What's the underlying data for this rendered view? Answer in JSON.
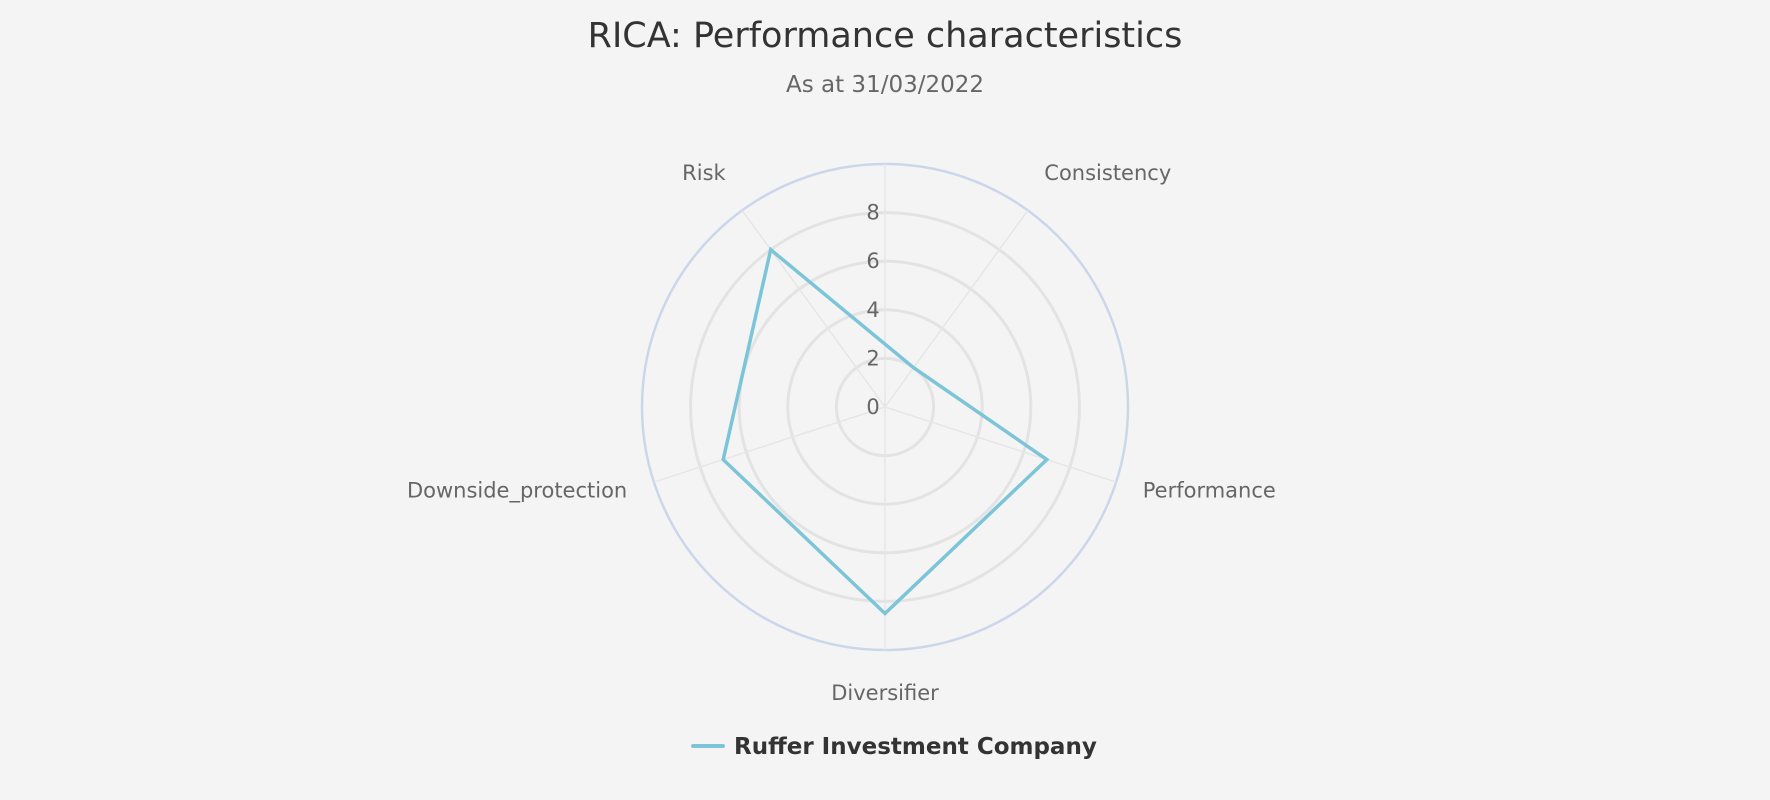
{
  "chart_data": {
    "type": "radar",
    "title": "RICA: Performance characteristics",
    "subtitle": "As at 31/03/2022",
    "categories": [
      "Consistency",
      "Performance",
      "Diversifier",
      "Downside_protection",
      "Risk"
    ],
    "series": [
      {
        "name": "Ruffer Investment Company",
        "color": "#7cc5d8",
        "values": [
          2,
          7,
          8.5,
          7,
          8
        ]
      }
    ],
    "radial_ticks": [
      "0",
      "2",
      "4",
      "6",
      "8"
    ],
    "radial_range": [
      0,
      10
    ],
    "grid": true,
    "legend_position": "bottom-center"
  }
}
